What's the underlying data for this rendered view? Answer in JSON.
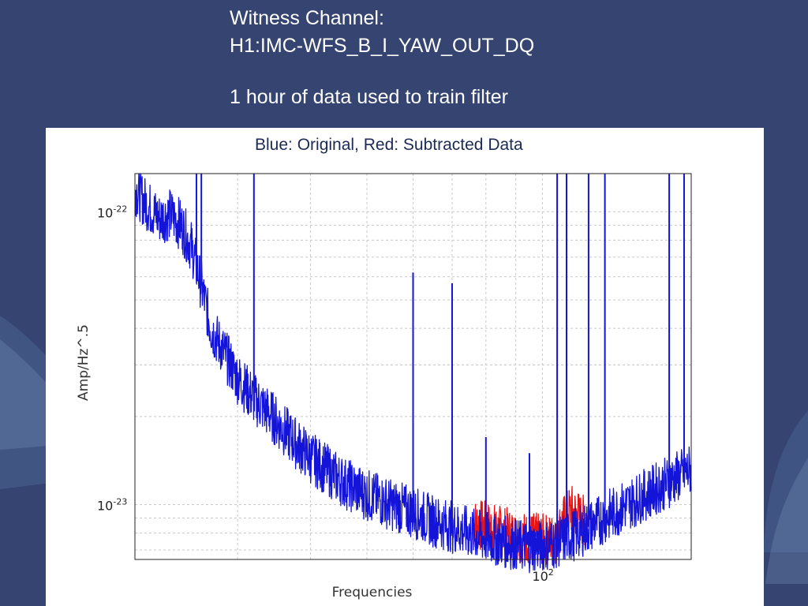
{
  "slide": {
    "title_line1": "Witness Channel:",
    "title_line2": "H1:IMC-WFS_B_I_YAW_OUT_DQ",
    "title_line3": "1 hour of data used to train filter"
  },
  "colors": {
    "background": "#354470",
    "original": "#1414d8",
    "subtracted": "#e81414"
  },
  "chart_data": {
    "type": "line",
    "title": "Blue: Original, Red: Subtracted Data",
    "xlabel": "Frequencies",
    "ylabel": "Amp/Hz^.5",
    "xscale": "log",
    "yscale": "log",
    "xlim": [
      20,
      180
    ],
    "ylim": [
      6.5e-24,
      1.35e-22
    ],
    "x_ticks": [
      {
        "value": 100,
        "base": "10",
        "exp": "2"
      }
    ],
    "y_ticks": [
      {
        "value": 1e-23,
        "base": "10",
        "exp": "-23"
      },
      {
        "value": 1e-22,
        "base": "10",
        "exp": "-22"
      }
    ],
    "grid": true,
    "series": [
      {
        "name": "Original",
        "color": "#1414d8",
        "x": [
          20,
          21,
          22,
          23,
          24,
          25,
          26,
          27,
          28,
          30,
          32,
          34,
          36,
          38,
          40,
          43,
          46,
          50,
          55,
          60,
          65,
          70,
          75,
          80,
          85,
          90,
          95,
          100,
          105,
          110,
          115,
          120,
          125,
          130,
          135,
          140,
          145,
          150,
          155,
          160,
          165,
          170,
          175,
          180
        ],
        "y": [
          1.2e-22,
          1.05e-22,
          9.5e-23,
          9.8e-23,
          9e-23,
          7.6e-23,
          5.6e-23,
          4e-23,
          3.5e-23,
          2.7e-23,
          2.3e-23,
          2.05e-23,
          1.8e-23,
          1.6e-23,
          1.45e-23,
          1.3e-23,
          1.18e-23,
          1.08e-23,
          1e-23,
          9.4e-24,
          8.8e-24,
          8.4e-24,
          8e-24,
          7.7e-24,
          7.5e-24,
          7.3e-24,
          7.2e-24,
          7.25e-24,
          7.4e-24,
          7.7e-24,
          8e-24,
          8.4e-24,
          8.8e-24,
          9.2e-24,
          9.6e-24,
          1e-23,
          1.04e-23,
          1.08e-23,
          1.12e-23,
          1.16e-23,
          1.2e-23,
          1.24e-23,
          1.28e-23,
          1.32e-23
        ]
      },
      {
        "name": "Subtracted",
        "color": "#e81414",
        "x": [
          76,
          80,
          85,
          90,
          95,
          100,
          105,
          108,
          112,
          116,
          120
        ],
        "y": [
          8.6e-24,
          8.4e-24,
          8.1e-24,
          7.8e-24,
          7.7e-24,
          7.6e-24,
          7.6e-24,
          8.6e-24,
          9.6e-24,
          9e-24,
          8.6e-24
        ]
      }
    ],
    "peaks": [
      {
        "x": 25.5,
        "y": 1.35e-22
      },
      {
        "x": 26,
        "y": 1.35e-22
      },
      {
        "x": 32,
        "y": 1.35e-22
      },
      {
        "x": 60,
        "y": 6.2e-23
      },
      {
        "x": 70,
        "y": 5.7e-23
      },
      {
        "x": 80,
        "y": 1.7e-23
      },
      {
        "x": 95,
        "y": 1.5e-23
      },
      {
        "x": 106,
        "y": 1.35e-22
      },
      {
        "x": 110,
        "y": 1.35e-22
      },
      {
        "x": 120,
        "y": 1.35e-22
      },
      {
        "x": 128,
        "y": 1.35e-22
      },
      {
        "x": 165,
        "y": 1.35e-22
      },
      {
        "x": 175,
        "y": 1.35e-22
      }
    ]
  }
}
